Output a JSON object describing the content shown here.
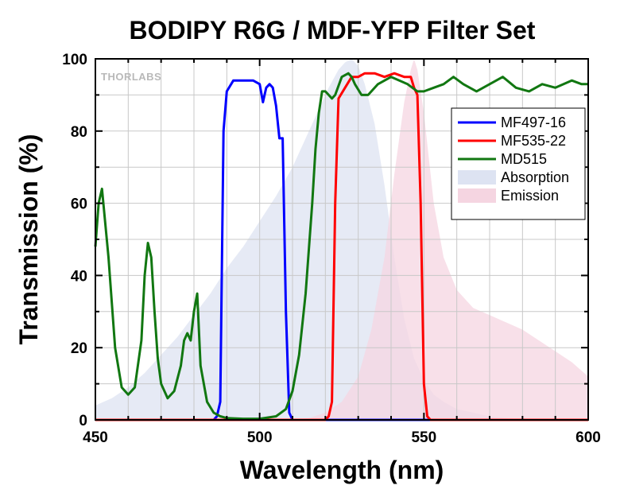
{
  "chart_data": {
    "type": "line",
    "title": "BODIPY R6G / MDF-YFP Filter Set",
    "xlabel": "Wavelength (nm)",
    "ylabel": "Transmission (%)",
    "xlim": [
      450,
      600
    ],
    "ylim": [
      0,
      100
    ],
    "x_ticks": [
      450,
      500,
      550,
      600
    ],
    "y_ticks": [
      0,
      20,
      40,
      60,
      80,
      100
    ],
    "grid": true,
    "legend_position": "top-right",
    "watermark": "THORLABS",
    "series": [
      {
        "name": "MF497-16",
        "kind": "line",
        "color": "#0000ff",
        "x": [
          450,
          486,
          487,
          488,
          489,
          490,
          492,
          495,
          498,
          500,
          501,
          502,
          503,
          504,
          505,
          506,
          507,
          508,
          509,
          510,
          600
        ],
        "y": [
          0,
          0,
          1,
          5,
          80,
          91,
          94,
          94,
          94,
          93,
          88,
          92,
          93,
          92,
          87,
          78,
          78,
          30,
          2,
          0,
          0
        ]
      },
      {
        "name": "MF535-22",
        "kind": "line",
        "color": "#ff0000",
        "x": [
          450,
          520,
          521,
          522,
          523,
          524,
          526,
          528,
          530,
          532,
          535,
          538,
          541,
          544,
          546,
          547,
          548,
          549,
          550,
          551,
          552,
          600
        ],
        "y": [
          0,
          0,
          1,
          5,
          60,
          89,
          92,
          95,
          95,
          96,
          96,
          95,
          96,
          95,
          95,
          92,
          90,
          60,
          10,
          1,
          0,
          0
        ]
      },
      {
        "name": "MD515",
        "kind": "line",
        "color": "#117711",
        "x": [
          450,
          451,
          452,
          454,
          456,
          458,
          460,
          462,
          464,
          465,
          466,
          467,
          468,
          469,
          470,
          472,
          474,
          476,
          477,
          478,
          479,
          480,
          481,
          482,
          484,
          486,
          488,
          490,
          495,
          500,
          505,
          508,
          510,
          512,
          514,
          516,
          517,
          518,
          519,
          520,
          521,
          522,
          523,
          525,
          527,
          528,
          529,
          531,
          533,
          536,
          540,
          545,
          548,
          550,
          553,
          556,
          559,
          562,
          566,
          570,
          574,
          578,
          582,
          586,
          590,
          595,
          598,
          600
        ],
        "y": [
          48,
          60,
          64,
          45,
          20,
          9,
          7,
          9,
          22,
          40,
          49,
          45,
          30,
          17,
          10,
          6,
          8,
          15,
          22,
          24,
          22,
          30,
          35,
          15,
          5,
          2,
          1,
          0.5,
          0.3,
          0.3,
          1,
          3,
          8,
          18,
          35,
          60,
          75,
          85,
          91,
          91,
          90,
          89,
          90,
          95,
          96,
          95,
          93,
          90,
          90,
          93,
          95,
          93,
          91,
          91,
          92,
          93,
          95,
          93,
          91,
          93,
          95,
          92,
          91,
          93,
          92,
          94,
          93,
          93
        ]
      },
      {
        "name": "Absorption",
        "kind": "area",
        "color": "#dde3f2",
        "x": [
          450,
          455,
          460,
          465,
          470,
          475,
          480,
          485,
          490,
          495,
          500,
          505,
          510,
          515,
          518,
          521,
          524,
          526,
          528,
          530,
          532,
          535,
          538,
          541,
          544,
          547,
          550,
          553,
          556,
          560,
          565,
          570,
          575,
          580,
          600
        ],
        "y": [
          4,
          6,
          9,
          13,
          18,
          23,
          29,
          35,
          42,
          48,
          55,
          62,
          70,
          80,
          86,
          92,
          97,
          99,
          100,
          98,
          93,
          82,
          65,
          45,
          28,
          17,
          11,
          7,
          5,
          3,
          2,
          1,
          0.5,
          0.2,
          0
        ]
      },
      {
        "name": "Emission",
        "kind": "area",
        "color": "#f5d5e1",
        "x": [
          450,
          510,
          515,
          520,
          525,
          530,
          534,
          538,
          541,
          544,
          546,
          547,
          548,
          550,
          553,
          556,
          560,
          565,
          570,
          575,
          580,
          585,
          590,
          595,
          600
        ],
        "y": [
          0,
          0,
          0.5,
          2,
          5,
          12,
          25,
          45,
          68,
          88,
          97,
          100,
          97,
          85,
          60,
          45,
          36,
          31,
          29,
          27,
          25,
          22,
          19,
          16,
          12
        ]
      }
    ]
  }
}
